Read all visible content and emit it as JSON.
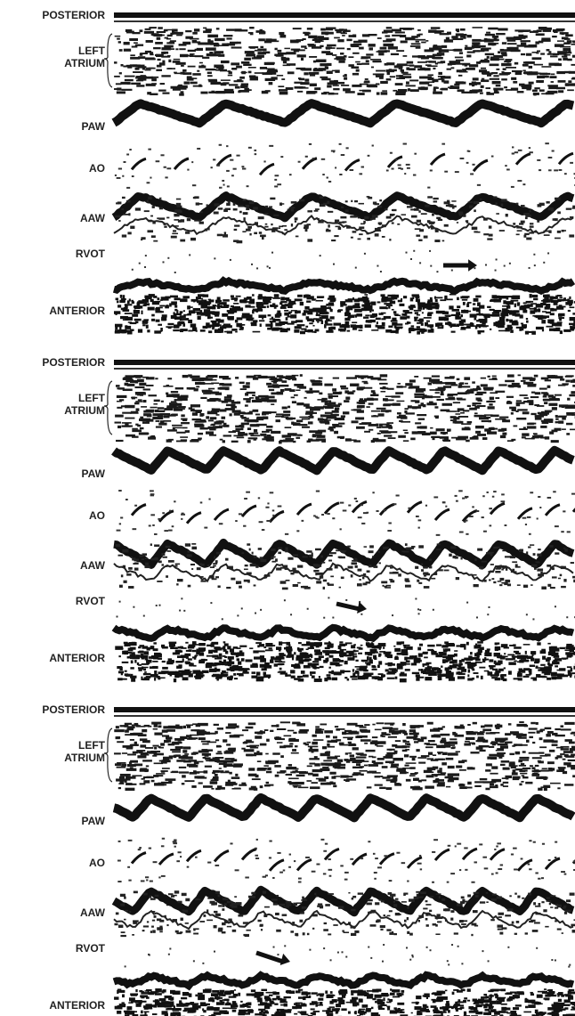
{
  "panels": [
    {
      "posterior": "POSTERIOR",
      "left_atrium": [
        "LEFT",
        "ATRIUM"
      ],
      "paw": "PAW",
      "ao": "AO",
      "aaw": "AAW",
      "rvot": "RVOT",
      "anterior": "ANTERIOR"
    },
    {
      "posterior": "POSTERIOR",
      "left_atrium": [
        "LEFT",
        "ATRIUM"
      ],
      "paw": "PAW",
      "ao": "AO",
      "aaw": "AAW",
      "rvot": "RVOT",
      "anterior": "ANTERIOR"
    },
    {
      "posterior": "POSTERIOR",
      "left_atrium": [
        "LEFT",
        "ATRIUM"
      ],
      "paw": "PAW",
      "ao": "AO",
      "aaw": "AAW",
      "rvot": "RVOT",
      "anterior": "ANTERIOR"
    }
  ]
}
